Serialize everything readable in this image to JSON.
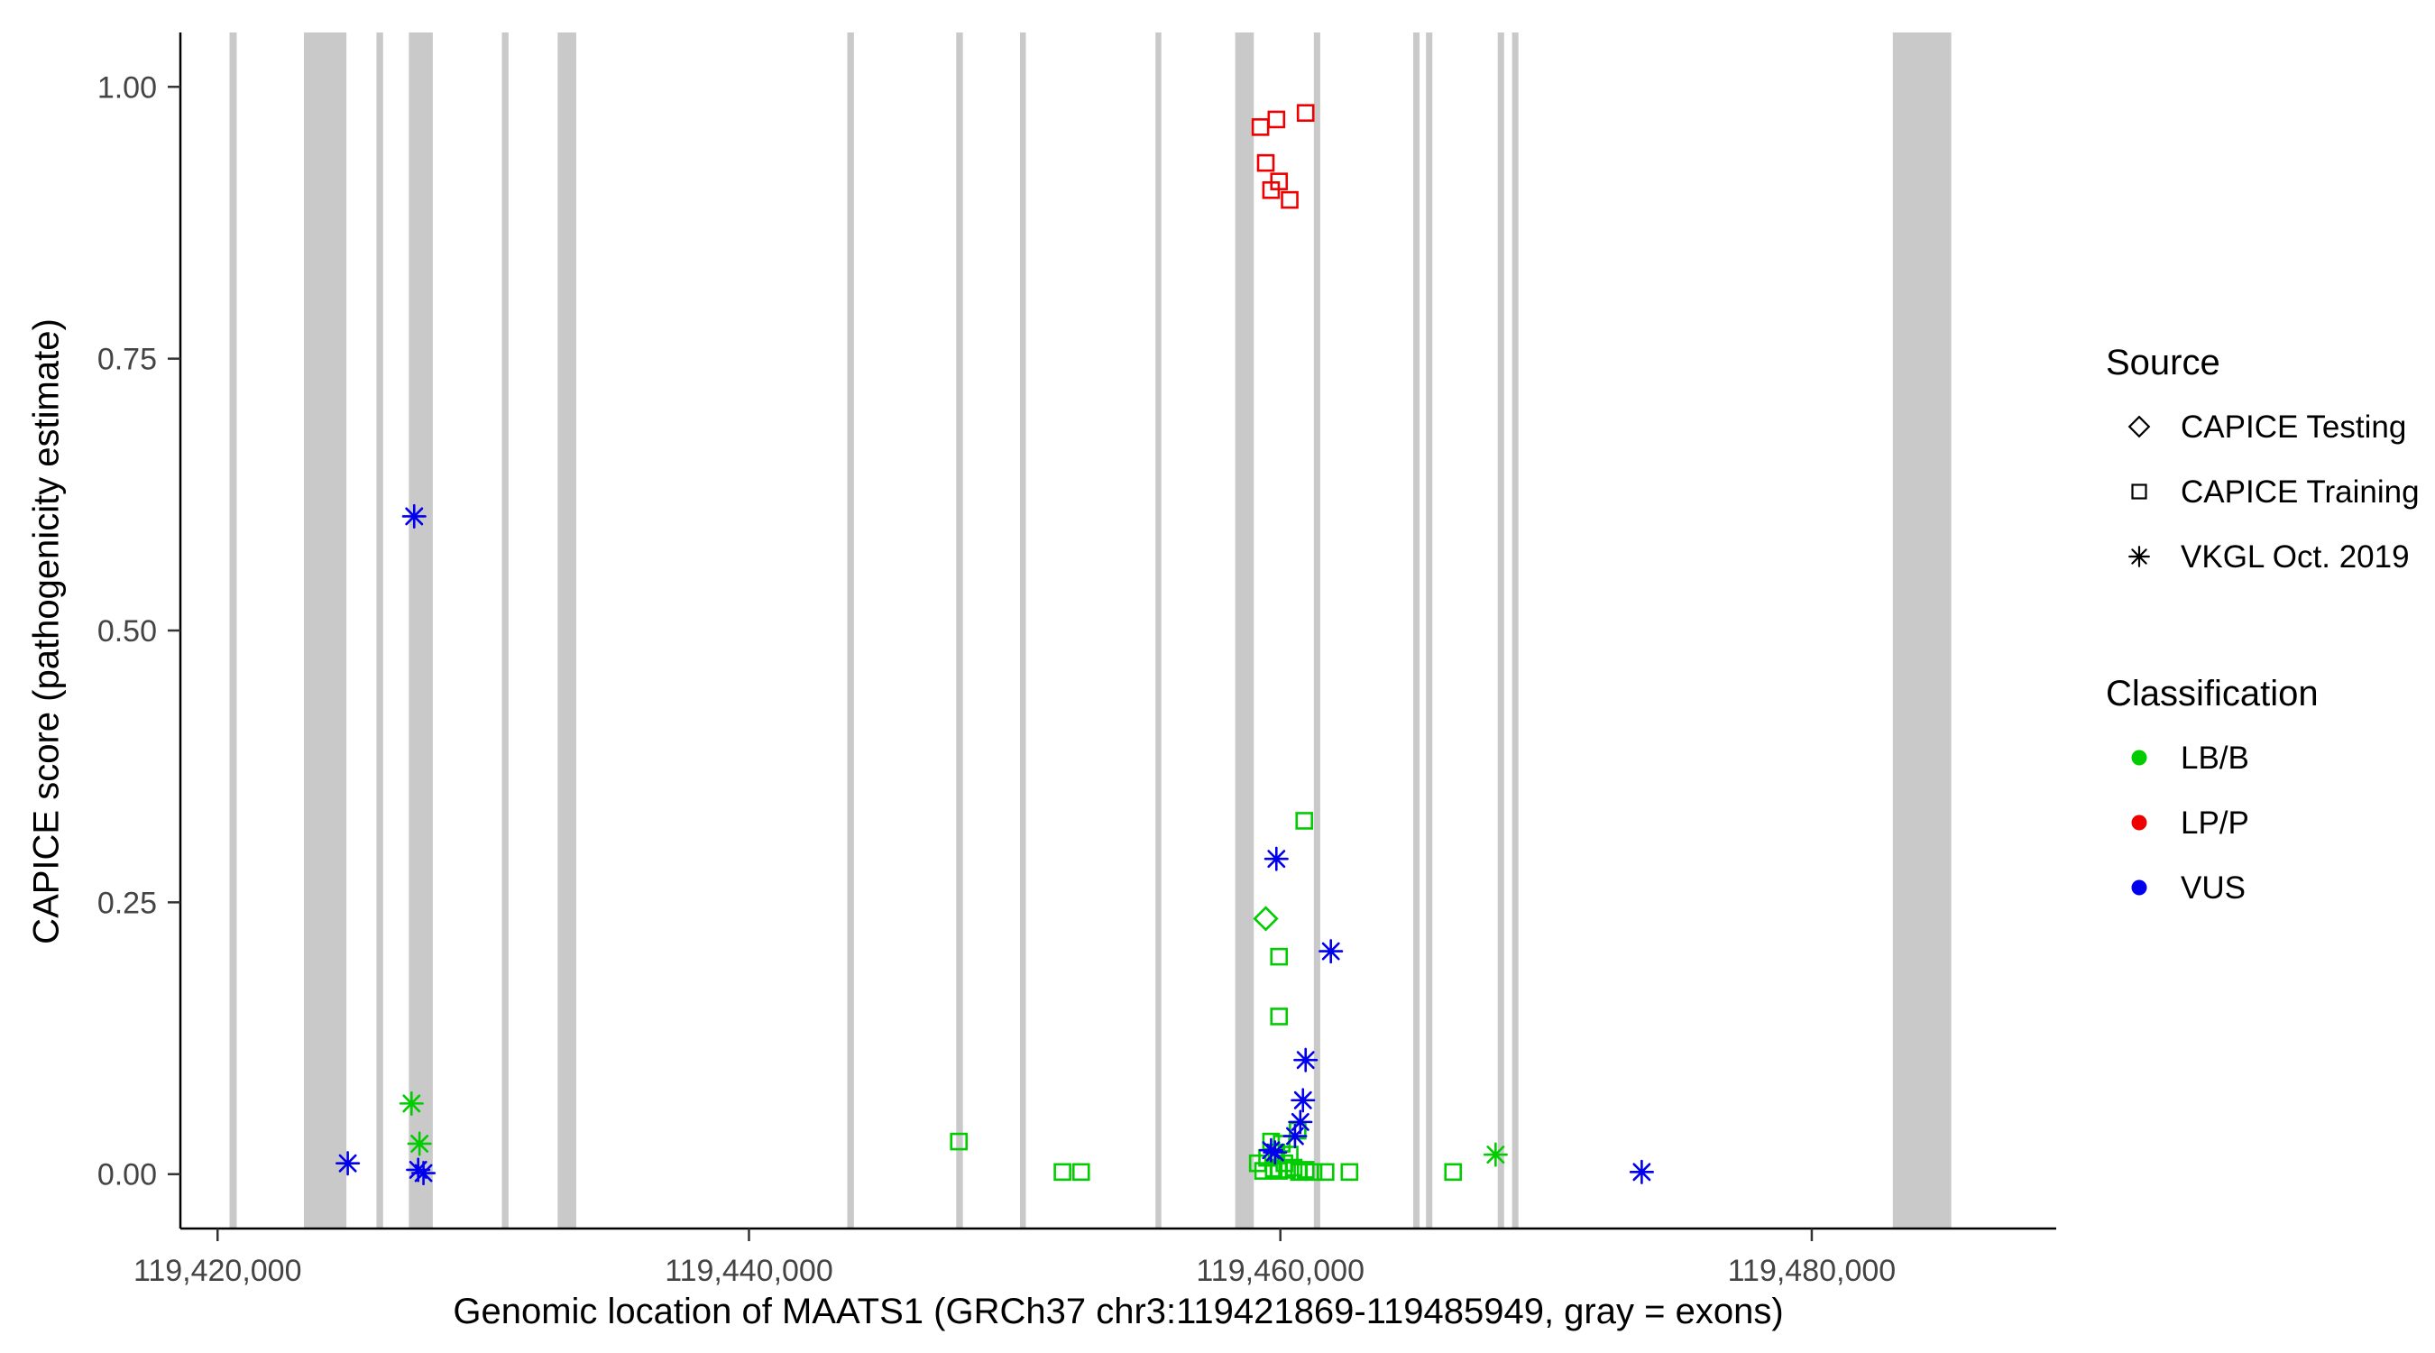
{
  "figure": {
    "background": "#FFFFFF"
  },
  "chart_data": {
    "type": "scatter",
    "title": "",
    "xlabel": "Genomic location of MAATS1 (GRCh37 chr3:119421869-119485949, gray = exons)",
    "ylabel": "CAPICE score (pathogenicity estimate)",
    "xlim": [
      119418600,
      119489200
    ],
    "ylim": [
      -0.05,
      1.05
    ],
    "grid": false,
    "legend_position": "right",
    "x_ticks": [
      {
        "value": 119420000,
        "label": "119,420,000"
      },
      {
        "value": 119440000,
        "label": "119,440,000"
      },
      {
        "value": 119460000,
        "label": "119,460,000"
      },
      {
        "value": 119480000,
        "label": "119,480,000"
      }
    ],
    "y_ticks": [
      {
        "value": 0.0,
        "label": "0.00"
      },
      {
        "value": 0.25,
        "label": "0.25"
      },
      {
        "value": 0.5,
        "label": "0.50"
      },
      {
        "value": 0.75,
        "label": "0.75"
      },
      {
        "value": 1.0,
        "label": "1.00"
      }
    ],
    "exon_color": "#C9C9C9",
    "exons": [
      [
        119420450,
        119420720
      ],
      [
        119423250,
        119424850
      ],
      [
        119425980,
        119426230
      ],
      [
        119427200,
        119428100
      ],
      [
        119430700,
        119430950
      ],
      [
        119432800,
        119433500
      ],
      [
        119443700,
        119443950
      ],
      [
        119447800,
        119448050
      ],
      [
        119450200,
        119450420
      ],
      [
        119455300,
        119455520
      ],
      [
        119458300,
        119459000
      ],
      [
        119461260,
        119461500
      ],
      [
        119465000,
        119465240
      ],
      [
        119465480,
        119465720
      ],
      [
        119468180,
        119468420
      ],
      [
        119468720,
        119468960
      ],
      [
        119483050,
        119485250
      ]
    ],
    "classification_colors": {
      "LB/B": "#00CC00",
      "LP/P": "#EE0000",
      "VUS": "#0000EE"
    },
    "series": [
      {
        "name": "CAPICE Testing / LB/B",
        "source": "CAPICE Testing",
        "classification": "LB/B",
        "shape": "diamond",
        "points": [
          [
            119459450,
            0.235
          ]
        ]
      },
      {
        "name": "CAPICE Training / LB/B",
        "source": "CAPICE Training",
        "classification": "LB/B",
        "shape": "square",
        "points": [
          [
            119447900,
            0.03
          ],
          [
            119451800,
            0.002
          ],
          [
            119452500,
            0.002
          ],
          [
            119460900,
            0.325
          ],
          [
            119459950,
            0.2
          ],
          [
            119459950,
            0.145
          ],
          [
            119460650,
            0.04
          ],
          [
            119459150,
            0.01
          ],
          [
            119459350,
            0.003
          ],
          [
            119459500,
            0.015
          ],
          [
            119459650,
            0.03
          ],
          [
            119459750,
            0.005
          ],
          [
            119459850,
            0.02
          ],
          [
            119459950,
            0.003
          ],
          [
            119460050,
            0.028
          ],
          [
            119460150,
            0.01
          ],
          [
            119460250,
            0.004
          ],
          [
            119460350,
            0.018
          ],
          [
            119460500,
            0.006
          ],
          [
            119460700,
            0.002
          ],
          [
            119460950,
            0.004
          ],
          [
            119461250,
            0.002
          ],
          [
            119461700,
            0.002
          ],
          [
            119462600,
            0.002
          ],
          [
            119466500,
            0.002
          ]
        ]
      },
      {
        "name": "CAPICE Training / LP/P",
        "source": "CAPICE Training",
        "classification": "LP/P",
        "shape": "square",
        "points": [
          [
            119459250,
            0.963
          ],
          [
            119459850,
            0.97
          ],
          [
            119460950,
            0.976
          ],
          [
            119459450,
            0.93
          ],
          [
            119459950,
            0.913
          ],
          [
            119459650,
            0.905
          ],
          [
            119460350,
            0.896
          ]
        ]
      },
      {
        "name": "VKGL Oct. 2019 / LB/B",
        "source": "VKGL Oct. 2019",
        "classification": "LB/B",
        "shape": "asterisk",
        "points": [
          [
            119427300,
            0.065
          ],
          [
            119427600,
            0.028
          ],
          [
            119468100,
            0.018
          ]
        ]
      },
      {
        "name": "VKGL Oct. 2019 / VUS",
        "source": "VKGL Oct. 2019",
        "classification": "VUS",
        "shape": "asterisk",
        "points": [
          [
            119424900,
            0.01
          ],
          [
            119427400,
            0.605
          ],
          [
            119427550,
            0.004
          ],
          [
            119427750,
            0.001
          ],
          [
            119459850,
            0.29
          ],
          [
            119461900,
            0.205
          ],
          [
            119460950,
            0.105
          ],
          [
            119460850,
            0.068
          ],
          [
            119460750,
            0.048
          ],
          [
            119460550,
            0.035
          ],
          [
            119459650,
            0.022
          ],
          [
            119459800,
            0.02
          ],
          [
            119473600,
            0.002
          ]
        ]
      }
    ],
    "legend": {
      "source": {
        "title": "Source",
        "items": [
          {
            "label": "CAPICE Testing",
            "shape": "diamond"
          },
          {
            "label": "CAPICE Training",
            "shape": "square"
          },
          {
            "label": "VKGL Oct. 2019",
            "shape": "asterisk"
          }
        ]
      },
      "classification": {
        "title": "Classification",
        "items": [
          {
            "label": "LB/B",
            "color": "#00CC00"
          },
          {
            "label": "LP/P",
            "color": "#EE0000"
          },
          {
            "label": "VUS",
            "color": "#0000EE"
          }
        ]
      }
    }
  }
}
